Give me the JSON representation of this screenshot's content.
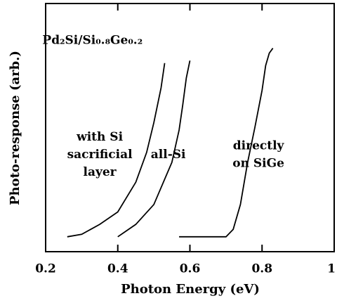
{
  "chart_data": {
    "type": "line",
    "xlabel": "Photon Energy (eV)",
    "ylabel": "Photo-response (arb.)",
    "xlim": [
      0.2,
      1
    ],
    "xticks": [
      0.2,
      0.4,
      0.6,
      0.8,
      1
    ],
    "ylim": [
      0,
      1
    ],
    "yticks": [],
    "series": [
      {
        "name": "with Si sacrificial layer",
        "color": "#000000",
        "x": [
          0.26,
          0.3,
          0.35,
          0.4,
          0.45,
          0.48,
          0.5,
          0.52,
          0.53
        ],
        "values": [
          0.06,
          0.07,
          0.11,
          0.16,
          0.28,
          0.4,
          0.52,
          0.66,
          0.76
        ]
      },
      {
        "name": "all-Si",
        "color": "#000000",
        "x": [
          0.4,
          0.42,
          0.45,
          0.5,
          0.55,
          0.57,
          0.58,
          0.59,
          0.6
        ],
        "values": [
          0.06,
          0.08,
          0.11,
          0.19,
          0.36,
          0.49,
          0.59,
          0.7,
          0.77
        ]
      },
      {
        "name": "directly on SiGe",
        "color": "#000000",
        "x": [
          0.57,
          0.65,
          0.7,
          0.72,
          0.74,
          0.76,
          0.78,
          0.8,
          0.81,
          0.82,
          0.83
        ],
        "values": [
          0.06,
          0.06,
          0.06,
          0.09,
          0.19,
          0.36,
          0.5,
          0.65,
          0.75,
          0.8,
          0.82
        ]
      }
    ],
    "annotations": [
      {
        "lines": [
          "Pd₂Si/Si₀.₈Ge₀.₂"
        ],
        "x": 0.33,
        "y": 0.85
      },
      {
        "lines": [
          "with Si",
          "sacrificial",
          "layer"
        ],
        "x": 0.35,
        "y": 0.39
      },
      {
        "lines": [
          "all-Si"
        ],
        "x": 0.54,
        "y": 0.39
      },
      {
        "lines": [
          "directly",
          "on SiGe"
        ],
        "x": 0.79,
        "y": 0.39
      }
    ]
  }
}
